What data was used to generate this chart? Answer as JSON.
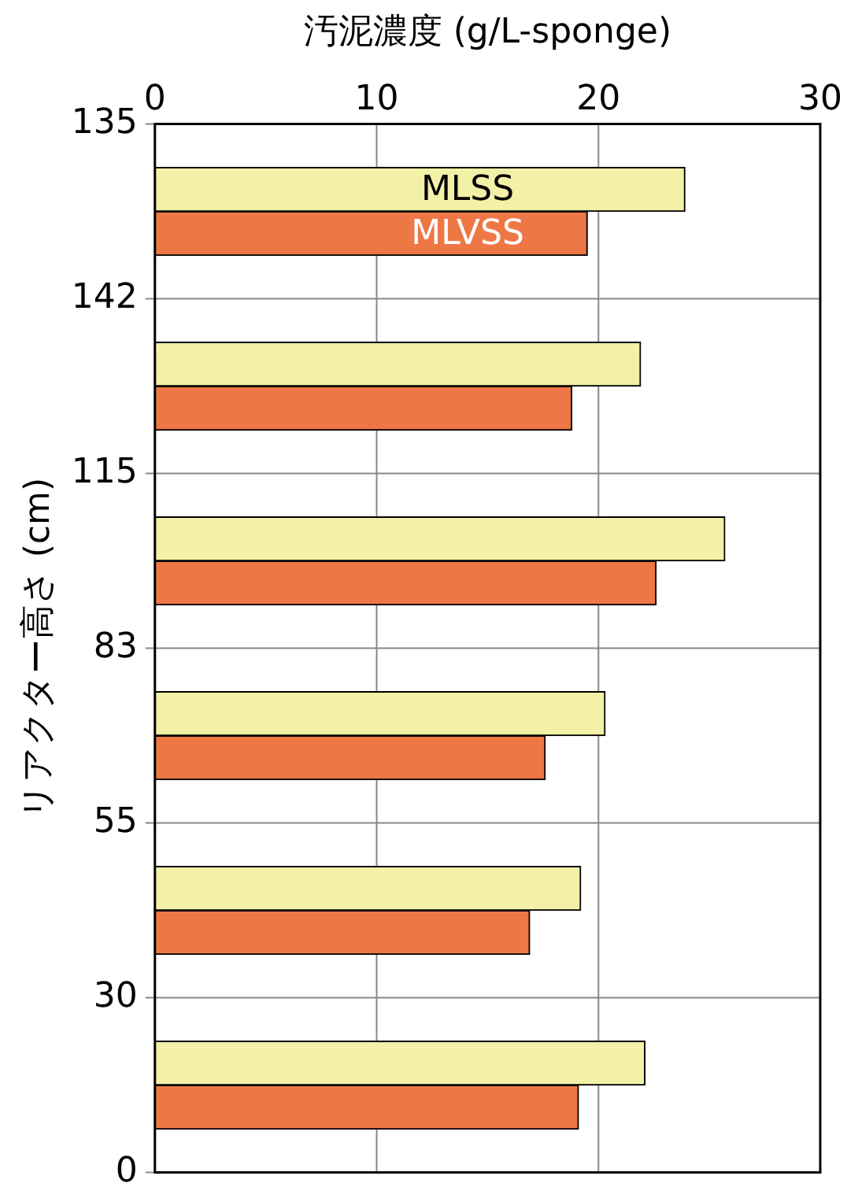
{
  "chart_data": {
    "type": "bar",
    "orientation": "horizontal",
    "xlabel": "汚泥濃度 (g/L-sponge)",
    "ylabel": "リアクター高さ (cm)",
    "categories": [
      "135",
      null,
      "142",
      null,
      "115",
      null,
      "83",
      null,
      "55",
      null,
      "30",
      null,
      "0"
    ],
    "series": [
      {
        "name": "MLSS",
        "color": "#f3f0a8",
        "values": [
          null,
          23.9,
          null,
          21.9,
          null,
          25.7,
          null,
          20.3,
          null,
          19.2,
          null,
          22.1,
          null
        ]
      },
      {
        "name": "MLVSS",
        "color": "#ee7746",
        "values": [
          null,
          19.5,
          null,
          18.8,
          null,
          22.6,
          null,
          17.6,
          null,
          16.9,
          null,
          19.1,
          null
        ]
      }
    ],
    "xlim": [
      0,
      30
    ],
    "xticks": [
      0,
      10,
      20,
      30
    ],
    "grid": true,
    "legend": false
  }
}
